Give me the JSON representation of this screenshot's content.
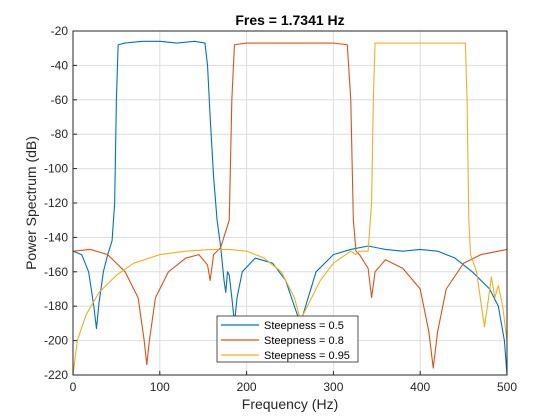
{
  "chart_data": {
    "type": "line",
    "title": "Fres = 1.7341 Hz",
    "xlabel": "Frequency (Hz)",
    "ylabel": "Power Spectrum (dB)",
    "xlim": [
      0,
      500
    ],
    "ylim": [
      -220,
      -20
    ],
    "xticks": [
      0,
      100,
      200,
      300,
      400,
      500
    ],
    "xtick_labels": [
      "0",
      "100",
      "200",
      "300",
      "400",
      "500"
    ],
    "yticks": [
      -20,
      -40,
      -60,
      -80,
      -100,
      -120,
      -140,
      -160,
      -180,
      -200,
      -220
    ],
    "ytick_labels": [
      "-20",
      "-40",
      "-60",
      "-80",
      "-100",
      "-120",
      "-140",
      "-160",
      "-180",
      "-200",
      "-220"
    ],
    "grid": true,
    "legend_position": "bottom-center",
    "series": [
      {
        "name": "Steepness = 0.5",
        "color": "#0072BD",
        "points": [
          [
            0,
            -148
          ],
          [
            10,
            -150
          ],
          [
            18,
            -160
          ],
          [
            24,
            -180
          ],
          [
            27,
            -193
          ],
          [
            30,
            -178
          ],
          [
            35,
            -160
          ],
          [
            40,
            -150
          ],
          [
            45,
            -142
          ],
          [
            48,
            -120
          ],
          [
            50,
            -60
          ],
          [
            52,
            -28
          ],
          [
            60,
            -27
          ],
          [
            80,
            -26
          ],
          [
            100,
            -26
          ],
          [
            120,
            -27
          ],
          [
            140,
            -26
          ],
          [
            152,
            -27
          ],
          [
            155,
            -40
          ],
          [
            158,
            -70
          ],
          [
            162,
            -105
          ],
          [
            166,
            -130
          ],
          [
            170,
            -145
          ],
          [
            174,
            -165
          ],
          [
            176,
            -172
          ],
          [
            178,
            -160
          ],
          [
            180,
            -162
          ],
          [
            183,
            -175
          ],
          [
            186,
            -190
          ],
          [
            189,
            -175
          ],
          [
            195,
            -160
          ],
          [
            210,
            -152
          ],
          [
            230,
            -155
          ],
          [
            245,
            -165
          ],
          [
            255,
            -180
          ],
          [
            262,
            -190
          ],
          [
            268,
            -180
          ],
          [
            280,
            -160
          ],
          [
            300,
            -150
          ],
          [
            320,
            -147
          ],
          [
            340,
            -145
          ],
          [
            360,
            -147
          ],
          [
            380,
            -148
          ],
          [
            400,
            -147
          ],
          [
            420,
            -148
          ],
          [
            440,
            -152
          ],
          [
            460,
            -160
          ],
          [
            480,
            -170
          ],
          [
            490,
            -180
          ],
          [
            497,
            -200
          ],
          [
            500,
            -220
          ]
        ]
      },
      {
        "name": "Steepness = 0.8",
        "color": "#D95319",
        "points": [
          [
            0,
            -148
          ],
          [
            20,
            -147
          ],
          [
            40,
            -150
          ],
          [
            60,
            -160
          ],
          [
            75,
            -175
          ],
          [
            82,
            -200
          ],
          [
            85,
            -214
          ],
          [
            88,
            -200
          ],
          [
            95,
            -175
          ],
          [
            110,
            -160
          ],
          [
            130,
            -152
          ],
          [
            145,
            -150
          ],
          [
            155,
            -156
          ],
          [
            158,
            -165
          ],
          [
            162,
            -150
          ],
          [
            170,
            -146
          ],
          [
            180,
            -130
          ],
          [
            183,
            -60
          ],
          [
            186,
            -28
          ],
          [
            200,
            -27
          ],
          [
            250,
            -27
          ],
          [
            300,
            -27
          ],
          [
            316,
            -28
          ],
          [
            320,
            -60
          ],
          [
            323,
            -130
          ],
          [
            326,
            -148
          ],
          [
            330,
            -150
          ],
          [
            340,
            -158
          ],
          [
            344,
            -175
          ],
          [
            348,
            -160
          ],
          [
            360,
            -153
          ],
          [
            380,
            -158
          ],
          [
            400,
            -170
          ],
          [
            410,
            -195
          ],
          [
            415,
            -216
          ],
          [
            420,
            -195
          ],
          [
            430,
            -170
          ],
          [
            450,
            -155
          ],
          [
            470,
            -150
          ],
          [
            490,
            -148
          ],
          [
            500,
            -147
          ]
        ]
      },
      {
        "name": "Steepness = 0.95",
        "color": "#EDB120",
        "points": [
          [
            0,
            -220
          ],
          [
            5,
            -200
          ],
          [
            15,
            -185
          ],
          [
            30,
            -172
          ],
          [
            50,
            -162
          ],
          [
            70,
            -155
          ],
          [
            100,
            -150
          ],
          [
            130,
            -148
          ],
          [
            160,
            -147
          ],
          [
            180,
            -147
          ],
          [
            200,
            -148
          ],
          [
            220,
            -152
          ],
          [
            240,
            -160
          ],
          [
            255,
            -175
          ],
          [
            262,
            -188
          ],
          [
            270,
            -180
          ],
          [
            285,
            -165
          ],
          [
            300,
            -155
          ],
          [
            320,
            -148
          ],
          [
            326,
            -150
          ],
          [
            330,
            -148
          ],
          [
            340,
            -148
          ],
          [
            344,
            -120
          ],
          [
            346,
            -60
          ],
          [
            348,
            -27
          ],
          [
            360,
            -27
          ],
          [
            400,
            -27
          ],
          [
            440,
            -27
          ],
          [
            452,
            -27
          ],
          [
            454,
            -60
          ],
          [
            456,
            -130
          ],
          [
            458,
            -150
          ],
          [
            465,
            -160
          ],
          [
            470,
            -178
          ],
          [
            474,
            -192
          ],
          [
            478,
            -178
          ],
          [
            482,
            -163
          ],
          [
            486,
            -175
          ],
          [
            490,
            -168
          ],
          [
            495,
            -180
          ],
          [
            500,
            -200
          ]
        ]
      }
    ]
  }
}
